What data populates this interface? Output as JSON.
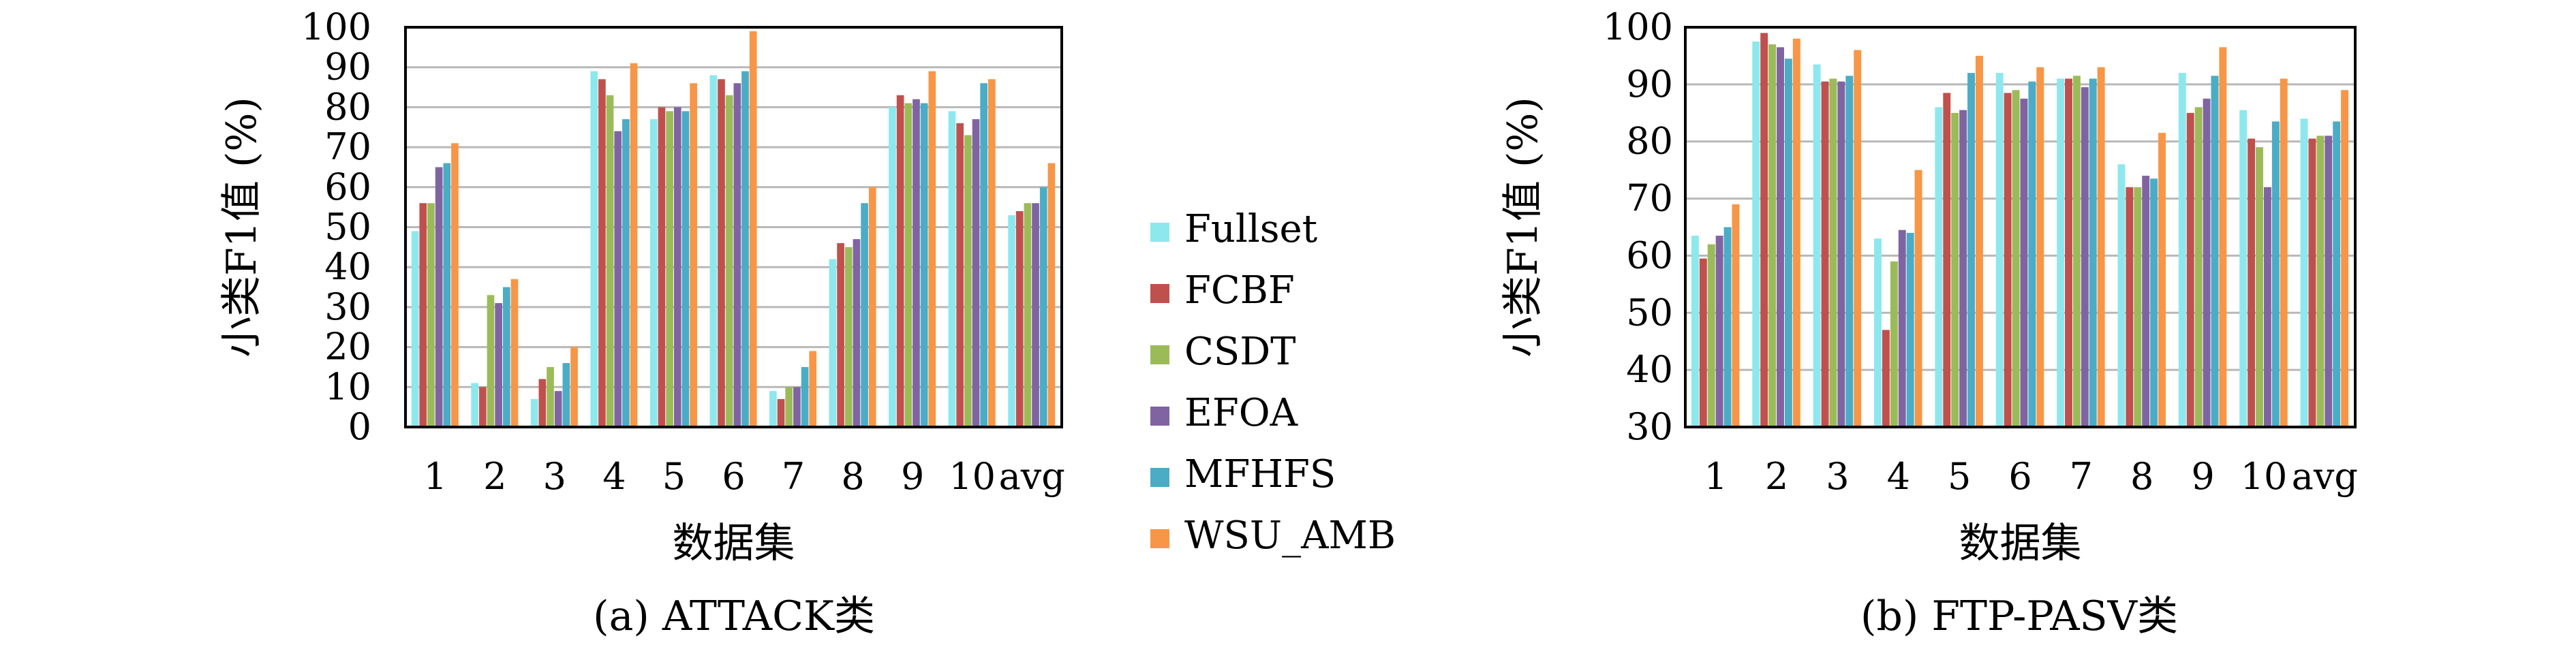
{
  "legend": {
    "items": [
      {
        "label": "Fullset",
        "color": "#8de8ee"
      },
      {
        "label": "FCBF",
        "color": "#c0504d"
      },
      {
        "label": "CSDT",
        "color": "#9bbb59"
      },
      {
        "label": "EFOA",
        "color": "#8064a2"
      },
      {
        "label": "MFHFS",
        "color": "#4bacc6"
      },
      {
        "label": "WSU_AMB",
        "color": "#f79646"
      }
    ]
  },
  "chart_data": [
    {
      "type": "bar",
      "caption": "(a) ATTACK类",
      "xlabel": "数据集",
      "ylabel": "小类F1值 (%)",
      "ylim": [
        0,
        100
      ],
      "yticks": [
        "0",
        "10",
        "20",
        "30",
        "40",
        "50",
        "60",
        "70",
        "80",
        "90",
        "100"
      ],
      "grid": true,
      "categories": [
        "1",
        "2",
        "3",
        "4",
        "5",
        "6",
        "7",
        "8",
        "9",
        "10",
        "avg"
      ],
      "series": [
        {
          "name": "Fullset",
          "values": [
            49,
            11,
            7,
            89,
            77,
            88,
            9,
            42,
            80,
            79,
            53
          ]
        },
        {
          "name": "FCBF",
          "values": [
            56,
            10,
            12,
            87,
            80,
            87,
            7,
            46,
            83,
            76,
            54
          ]
        },
        {
          "name": "CSDT",
          "values": [
            56,
            33,
            15,
            83,
            79,
            83,
            10,
            45,
            81,
            73,
            56
          ]
        },
        {
          "name": "EFOA",
          "values": [
            65,
            31,
            9,
            74,
            80,
            86,
            10,
            47,
            82,
            77,
            56
          ]
        },
        {
          "name": "MFHFS",
          "values": [
            66,
            35,
            16,
            77,
            79,
            89,
            15,
            56,
            81,
            86,
            60
          ]
        },
        {
          "name": "WSU_AMB",
          "values": [
            71,
            37,
            20,
            91,
            86,
            99,
            19,
            60,
            89,
            87,
            66
          ]
        }
      ]
    },
    {
      "type": "bar",
      "caption": "(b) FTP-PASV类",
      "xlabel": "数据集",
      "ylabel": "小类F1值 (%)",
      "ylim": [
        30,
        100
      ],
      "yticks": [
        "30",
        "40",
        "50",
        "60",
        "70",
        "80",
        "90",
        "100"
      ],
      "grid": true,
      "categories": [
        "1",
        "2",
        "3",
        "4",
        "5",
        "6",
        "7",
        "8",
        "9",
        "10",
        "avg"
      ],
      "series": [
        {
          "name": "Fullset",
          "values": [
            63.5,
            97.5,
            93.5,
            63,
            86,
            92,
            91,
            76,
            92,
            85.5,
            84
          ]
        },
        {
          "name": "FCBF",
          "values": [
            59.5,
            99,
            90.5,
            47,
            88.5,
            88.5,
            91,
            72,
            85,
            80.5,
            80.5
          ]
        },
        {
          "name": "CSDT",
          "values": [
            62,
            97,
            91,
            59,
            85,
            89,
            91.5,
            72,
            86,
            79,
            81
          ]
        },
        {
          "name": "EFOA",
          "values": [
            63.5,
            96.5,
            90.5,
            64.5,
            85.5,
            87.5,
            89.5,
            74,
            87.5,
            72,
            81
          ]
        },
        {
          "name": "MFHFS",
          "values": [
            65,
            94.5,
            91.5,
            64,
            92,
            90.5,
            91,
            73.5,
            91.5,
            83.5,
            83.5
          ]
        },
        {
          "name": "WSU_AMB",
          "values": [
            69,
            98,
            96,
            75,
            95,
            93,
            93,
            81.5,
            96.5,
            91,
            89
          ]
        }
      ]
    }
  ]
}
